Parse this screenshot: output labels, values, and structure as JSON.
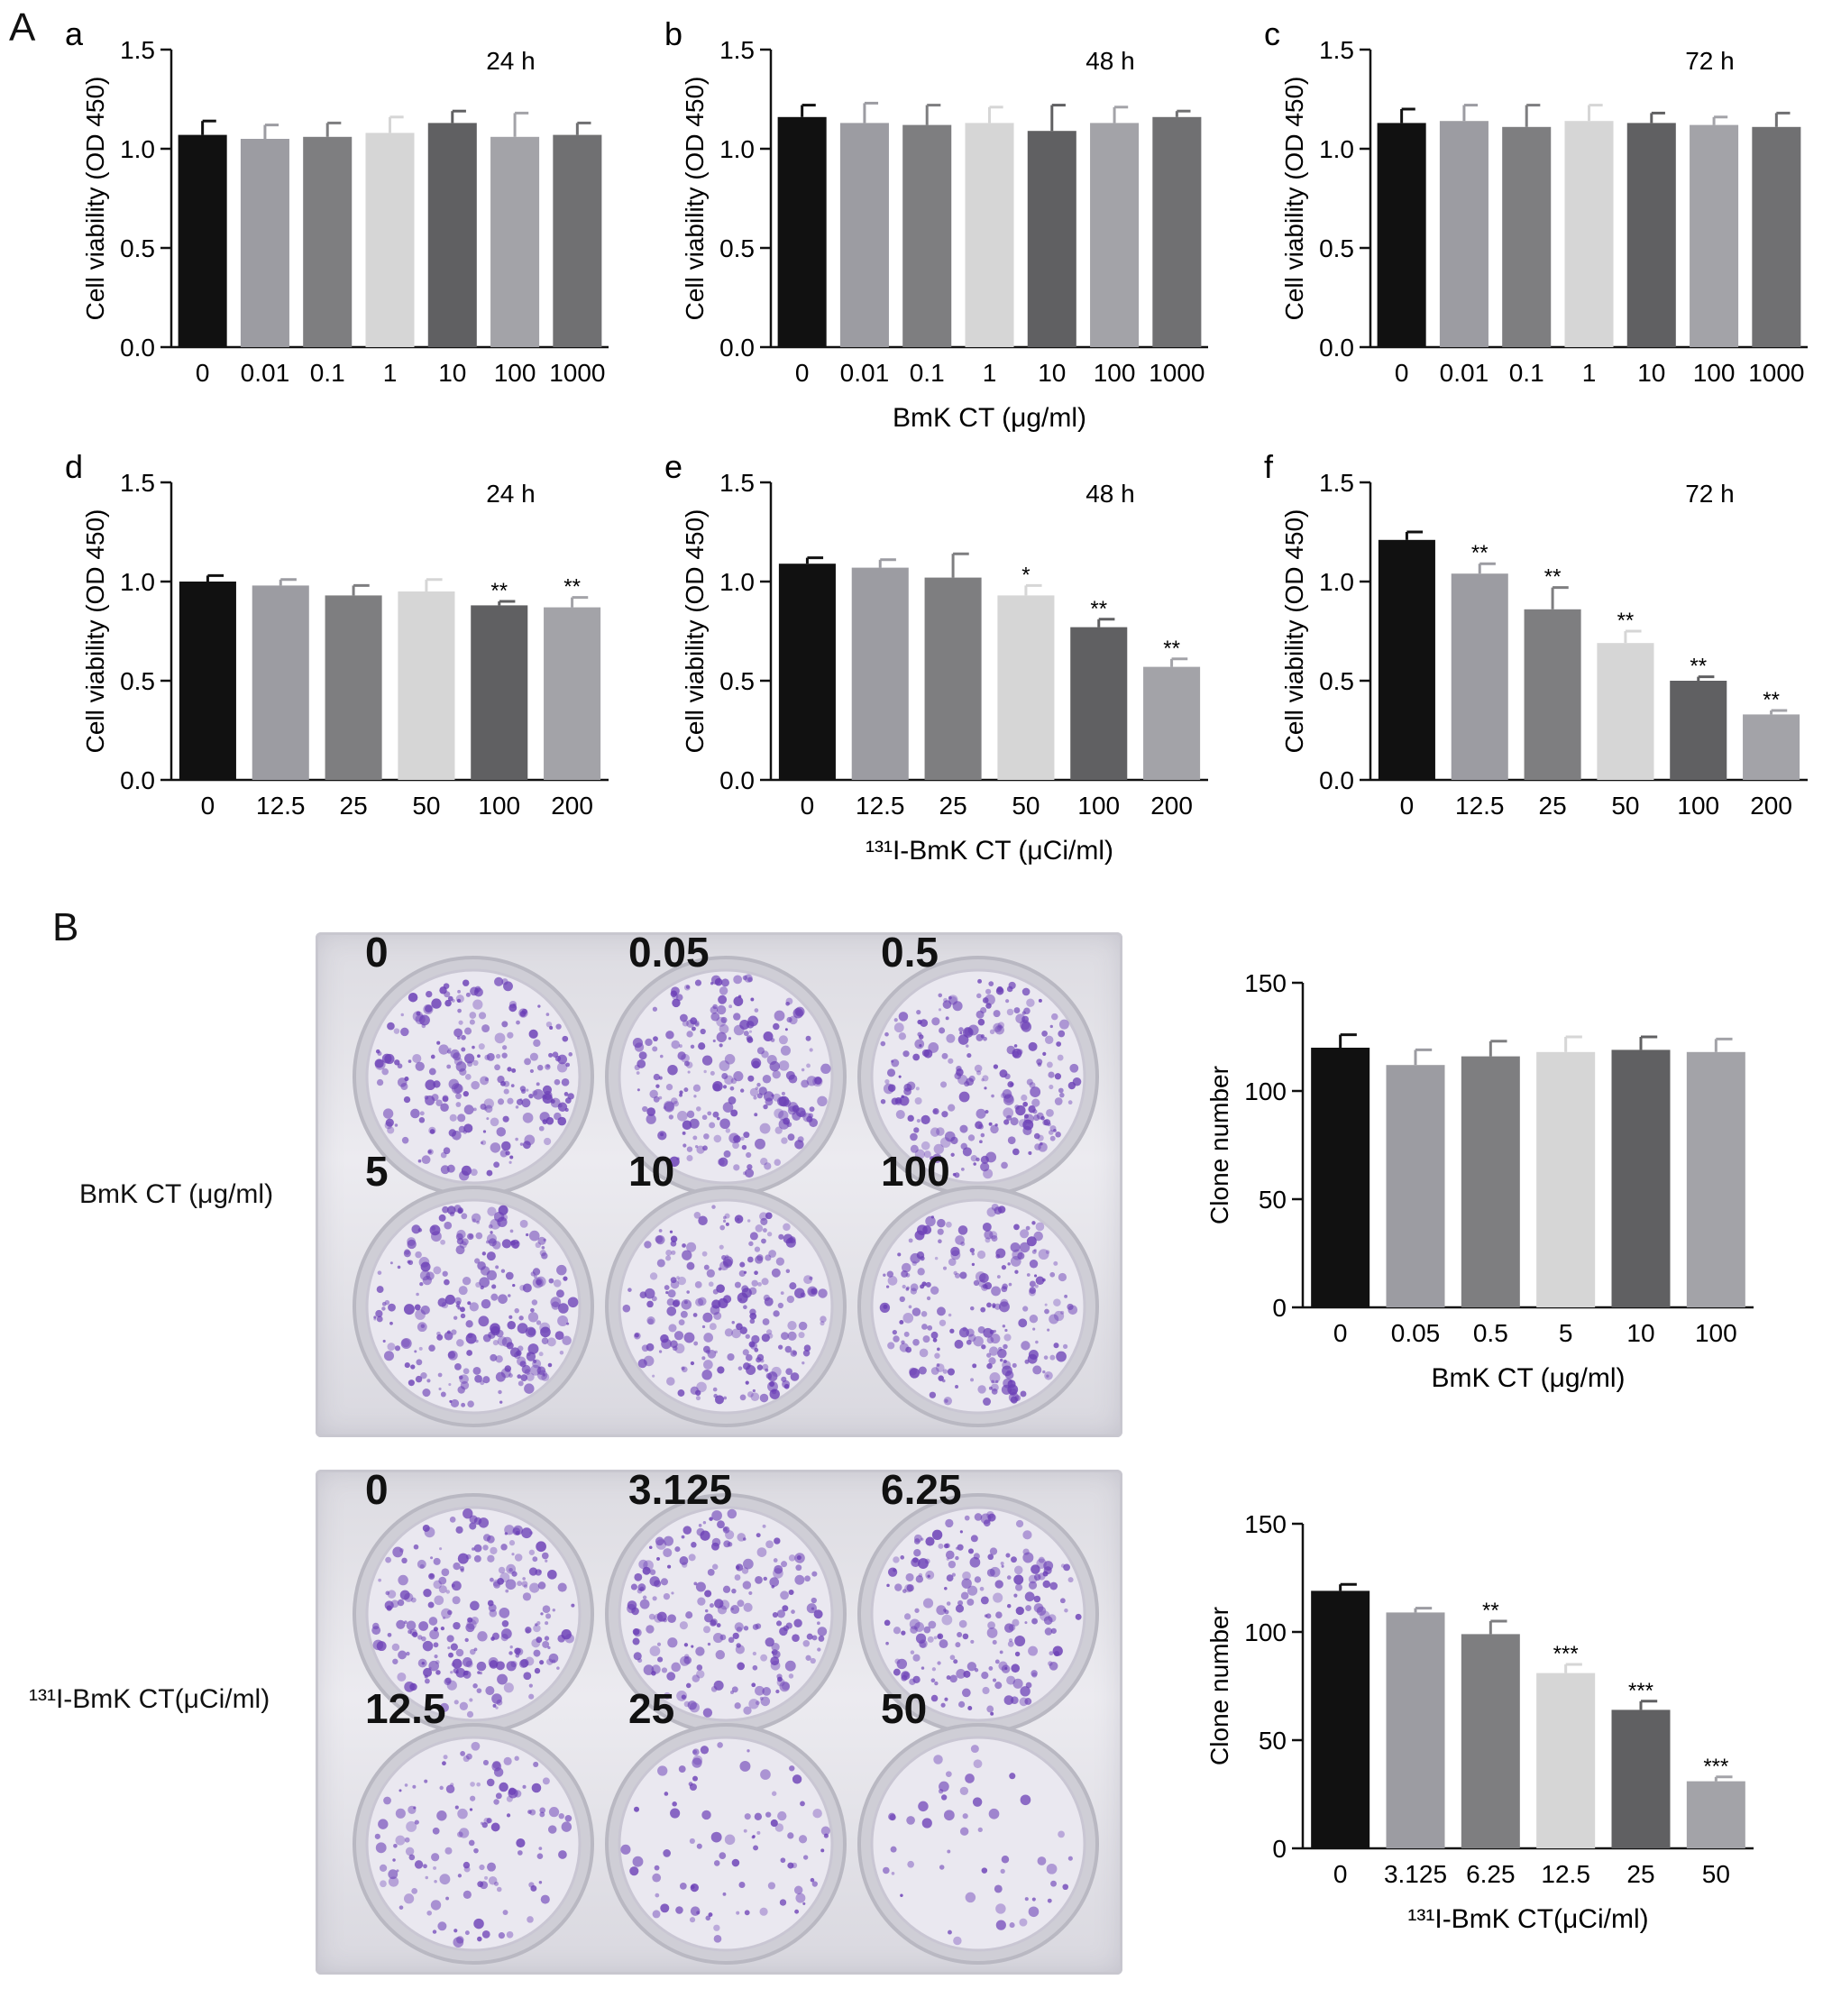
{
  "figure": {
    "panel_A_letter": "A",
    "panel_B_letter": "B"
  },
  "colors": {
    "bar_fill": [
      "#111111",
      "#9c9ca2",
      "#7e7e80",
      "#d6d6d6",
      "#606062",
      "#a3a3a8",
      "#707072"
    ],
    "stain": "#6b3fb6",
    "plate": "#e4e3e8"
  },
  "chart_data": [
    {
      "id": "a",
      "type": "bar",
      "letter": "a",
      "annotation": "24 h",
      "ylabel": "Cell viability (OD 450)",
      "xlabel": "",
      "categories": [
        "0",
        "0.01",
        "0.1",
        "1",
        "10",
        "100",
        "1000"
      ],
      "values": [
        1.07,
        1.05,
        1.06,
        1.08,
        1.13,
        1.06,
        1.07
      ],
      "errors": [
        0.07,
        0.07,
        0.07,
        0.08,
        0.06,
        0.12,
        0.06
      ],
      "significance": [
        "",
        "",
        "",
        "",
        "",
        "",
        ""
      ],
      "ylim": [
        0,
        1.5
      ],
      "yticks": [
        "0.0",
        "0.5",
        "1.0",
        "1.5"
      ]
    },
    {
      "id": "b",
      "type": "bar",
      "letter": "b",
      "annotation": "48 h",
      "ylabel": "Cell viability (OD 450)",
      "xlabel": "BmK CT (μg/ml)",
      "categories": [
        "0",
        "0.01",
        "0.1",
        "1",
        "10",
        "100",
        "1000"
      ],
      "values": [
        1.16,
        1.13,
        1.12,
        1.13,
        1.09,
        1.13,
        1.16
      ],
      "errors": [
        0.06,
        0.1,
        0.1,
        0.08,
        0.13,
        0.08,
        0.03
      ],
      "significance": [
        "",
        "",
        "",
        "",
        "",
        "",
        ""
      ],
      "ylim": [
        0,
        1.5
      ],
      "yticks": [
        "0.0",
        "0.5",
        "1.0",
        "1.5"
      ]
    },
    {
      "id": "c",
      "type": "bar",
      "letter": "c",
      "annotation": "72 h",
      "ylabel": "Cell viability (OD 450)",
      "xlabel": "",
      "categories": [
        "0",
        "0.01",
        "0.1",
        "1",
        "10",
        "100",
        "1000"
      ],
      "values": [
        1.13,
        1.14,
        1.11,
        1.14,
        1.13,
        1.12,
        1.11
      ],
      "errors": [
        0.07,
        0.08,
        0.11,
        0.08,
        0.05,
        0.04,
        0.07
      ],
      "significance": [
        "",
        "",
        "",
        "",
        "",
        "",
        ""
      ],
      "ylim": [
        0,
        1.5
      ],
      "yticks": [
        "0.0",
        "0.5",
        "1.0",
        "1.5"
      ]
    },
    {
      "id": "d",
      "type": "bar",
      "letter": "d",
      "annotation": "24 h",
      "ylabel": "Cell viability (OD 450)",
      "xlabel": "",
      "categories": [
        "0",
        "12.5",
        "25",
        "50",
        "100",
        "200"
      ],
      "values": [
        1.0,
        0.98,
        0.93,
        0.95,
        0.88,
        0.87
      ],
      "errors": [
        0.03,
        0.03,
        0.05,
        0.06,
        0.02,
        0.05
      ],
      "significance": [
        "",
        "",
        "",
        "",
        "**",
        "**"
      ],
      "ylim": [
        0,
        1.5
      ],
      "yticks": [
        "0.0",
        "0.5",
        "1.0",
        "1.5"
      ]
    },
    {
      "id": "e",
      "type": "bar",
      "letter": "e",
      "annotation": "48 h",
      "ylabel": "Cell viability (OD 450)",
      "xlabel": "¹³¹I-BmK CT (μCi/ml)",
      "categories": [
        "0",
        "12.5",
        "25",
        "50",
        "100",
        "200"
      ],
      "values": [
        1.09,
        1.07,
        1.02,
        0.93,
        0.77,
        0.57
      ],
      "errors": [
        0.03,
        0.04,
        0.12,
        0.05,
        0.04,
        0.04
      ],
      "significance": [
        "",
        "",
        "",
        "*",
        "**",
        "**"
      ],
      "ylim": [
        0,
        1.5
      ],
      "yticks": [
        "0.0",
        "0.5",
        "1.0",
        "1.5"
      ]
    },
    {
      "id": "f",
      "type": "bar",
      "letter": "f",
      "annotation": "72 h",
      "ylabel": "Cell viability (OD 450)",
      "xlabel": "",
      "categories": [
        "0",
        "12.5",
        "25",
        "50",
        "100",
        "200"
      ],
      "values": [
        1.21,
        1.04,
        0.86,
        0.69,
        0.5,
        0.33
      ],
      "errors": [
        0.04,
        0.05,
        0.11,
        0.06,
        0.02,
        0.02
      ],
      "significance": [
        "",
        "**",
        "**",
        "**",
        "**",
        "**"
      ],
      "ylim": [
        0,
        1.5
      ],
      "yticks": [
        "0.0",
        "0.5",
        "1.0",
        "1.5"
      ]
    },
    {
      "id": "g",
      "type": "bar",
      "letter": "",
      "annotation": "",
      "ylabel": "Clone number",
      "xlabel": "BmK CT (μg/ml)",
      "categories": [
        "0",
        "0.05",
        "0.5",
        "5",
        "10",
        "100"
      ],
      "values": [
        120,
        112,
        116,
        118,
        119,
        118
      ],
      "errors": [
        6,
        7,
        7,
        7,
        6,
        6
      ],
      "significance": [
        "",
        "",
        "",
        "",
        "",
        ""
      ],
      "ylim": [
        0,
        150
      ],
      "yticks": [
        "0",
        "50",
        "100",
        "150"
      ]
    },
    {
      "id": "h",
      "type": "bar",
      "letter": "",
      "annotation": "",
      "ylabel": "Clone number",
      "xlabel": "¹³¹I-BmK CT(μCi/ml)",
      "categories": [
        "0",
        "3.125",
        "6.25",
        "12.5",
        "25",
        "50"
      ],
      "values": [
        119,
        109,
        99,
        81,
        64,
        31
      ],
      "errors": [
        3,
        2,
        6,
        4,
        4,
        2
      ],
      "significance": [
        "",
        "",
        "**",
        "***",
        "***",
        "***"
      ],
      "ylim": [
        0,
        150
      ],
      "yticks": [
        "0",
        "50",
        "100",
        "150"
      ]
    }
  ],
  "plates": [
    {
      "side_label": "BmK CT (μg/ml)",
      "wells": [
        "0",
        "0.05",
        "0.5",
        "5",
        "10",
        "100"
      ],
      "density": [
        0.55,
        0.55,
        0.55,
        0.6,
        0.55,
        0.55
      ]
    },
    {
      "side_label": "¹³¹I-BmK CT(μCi/ml)",
      "wells": [
        "0",
        "3.125",
        "6.25",
        "12.5",
        "25",
        "50"
      ],
      "density": [
        0.55,
        0.5,
        0.5,
        0.3,
        0.2,
        0.12
      ]
    }
  ]
}
